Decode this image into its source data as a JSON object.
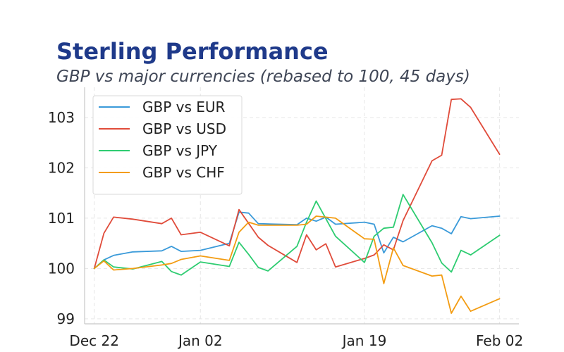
{
  "chart_data": {
    "type": "line",
    "title": "Sterling Performance",
    "subtitle": "GBP vs major currencies (rebased to 100, 45 days)",
    "xlabel": "",
    "ylabel": "",
    "x_ticks": [
      {
        "label": "Dec 22",
        "value": "2023-12-22"
      },
      {
        "label": "Jan 02",
        "value": "2024-01-02"
      },
      {
        "label": "Jan 19",
        "value": "2024-01-19"
      },
      {
        "label": "Feb 02",
        "value": "2024-02-02"
      }
    ],
    "y_ticks": [
      99,
      100,
      101,
      102,
      103
    ],
    "xlim": [
      "2023-12-21",
      "2024-02-04"
    ],
    "ylim": [
      98.9,
      103.6
    ],
    "grid": true,
    "legend_position": "top-left",
    "series": [
      {
        "name": "GBP vs EUR",
        "color": "#3a9ad9",
        "points": [
          [
            "2023-12-22",
            100.0
          ],
          [
            "2023-12-23",
            100.17
          ],
          [
            "2023-12-24",
            100.26
          ],
          [
            "2023-12-26",
            100.33
          ],
          [
            "2023-12-29",
            100.35
          ],
          [
            "2023-12-30",
            100.44
          ],
          [
            "2023-12-31",
            100.34
          ],
          [
            "2024-01-02",
            100.36
          ],
          [
            "2024-01-05",
            100.5
          ],
          [
            "2024-01-06",
            101.12
          ],
          [
            "2024-01-07",
            101.1
          ],
          [
            "2024-01-08",
            100.89
          ],
          [
            "2024-01-12",
            100.87
          ],
          [
            "2024-01-13",
            101.0
          ],
          [
            "2024-01-14",
            100.94
          ],
          [
            "2024-01-15",
            101.02
          ],
          [
            "2024-01-16",
            100.88
          ],
          [
            "2024-01-19",
            100.92
          ],
          [
            "2024-01-20",
            100.88
          ],
          [
            "2024-01-21",
            100.31
          ],
          [
            "2024-01-22",
            100.62
          ],
          [
            "2024-01-23",
            100.53
          ],
          [
            "2024-01-26",
            100.85
          ],
          [
            "2024-01-27",
            100.8
          ],
          [
            "2024-01-28",
            100.69
          ],
          [
            "2024-01-29",
            101.03
          ],
          [
            "2024-01-30",
            100.99
          ],
          [
            "2024-02-02",
            101.04
          ]
        ]
      },
      {
        "name": "GBP vs USD",
        "color": "#e04b3a",
        "points": [
          [
            "2023-12-22",
            100.0
          ],
          [
            "2023-12-23",
            100.7
          ],
          [
            "2023-12-24",
            101.02
          ],
          [
            "2023-12-26",
            100.98
          ],
          [
            "2023-12-29",
            100.89
          ],
          [
            "2023-12-30",
            101.0
          ],
          [
            "2023-12-31",
            100.67
          ],
          [
            "2024-01-02",
            100.72
          ],
          [
            "2024-01-05",
            100.45
          ],
          [
            "2024-01-06",
            101.17
          ],
          [
            "2024-01-08",
            100.62
          ],
          [
            "2024-01-09",
            100.46
          ],
          [
            "2024-01-12",
            100.12
          ],
          [
            "2024-01-13",
            100.67
          ],
          [
            "2024-01-14",
            100.37
          ],
          [
            "2024-01-15",
            100.49
          ],
          [
            "2024-01-16",
            100.03
          ],
          [
            "2024-01-19",
            100.2
          ],
          [
            "2024-01-20",
            100.27
          ],
          [
            "2024-01-21",
            100.47
          ],
          [
            "2024-01-22",
            100.37
          ],
          [
            "2024-01-23",
            100.95
          ],
          [
            "2024-01-26",
            102.14
          ],
          [
            "2024-01-27",
            102.25
          ],
          [
            "2024-01-28",
            103.36
          ],
          [
            "2024-01-29",
            103.37
          ],
          [
            "2024-01-30",
            103.2
          ],
          [
            "2024-02-02",
            102.27
          ]
        ]
      },
      {
        "name": "GBP vs JPY",
        "color": "#2ecc71",
        "points": [
          [
            "2023-12-22",
            100.0
          ],
          [
            "2023-12-23",
            100.17
          ],
          [
            "2023-12-24",
            100.03
          ],
          [
            "2023-12-26",
            99.99
          ],
          [
            "2023-12-29",
            100.14
          ],
          [
            "2023-12-30",
            99.94
          ],
          [
            "2023-12-31",
            99.87
          ],
          [
            "2024-01-02",
            100.13
          ],
          [
            "2024-01-05",
            100.04
          ],
          [
            "2024-01-06",
            100.52
          ],
          [
            "2024-01-07",
            100.28
          ],
          [
            "2024-01-08",
            100.02
          ],
          [
            "2024-01-09",
            99.95
          ],
          [
            "2024-01-12",
            100.44
          ],
          [
            "2024-01-13",
            100.92
          ],
          [
            "2024-01-14",
            101.34
          ],
          [
            "2024-01-16",
            100.64
          ],
          [
            "2024-01-19",
            100.12
          ],
          [
            "2024-01-20",
            100.64
          ],
          [
            "2024-01-21",
            100.8
          ],
          [
            "2024-01-22",
            100.82
          ],
          [
            "2024-01-23",
            101.47
          ],
          [
            "2024-01-26",
            100.51
          ],
          [
            "2024-01-27",
            100.11
          ],
          [
            "2024-01-28",
            99.93
          ],
          [
            "2024-01-29",
            100.36
          ],
          [
            "2024-01-30",
            100.27
          ],
          [
            "2024-02-02",
            100.66
          ]
        ]
      },
      {
        "name": "GBP vs CHF",
        "color": "#f39c12",
        "points": [
          [
            "2023-12-22",
            100.0
          ],
          [
            "2023-12-23",
            100.15
          ],
          [
            "2023-12-24",
            99.97
          ],
          [
            "2023-12-26",
            100.0
          ],
          [
            "2023-12-29",
            100.07
          ],
          [
            "2023-12-30",
            100.1
          ],
          [
            "2023-12-31",
            100.18
          ],
          [
            "2024-01-02",
            100.25
          ],
          [
            "2024-01-05",
            100.16
          ],
          [
            "2024-01-06",
            100.72
          ],
          [
            "2024-01-07",
            100.92
          ],
          [
            "2024-01-08",
            100.86
          ],
          [
            "2024-01-12",
            100.86
          ],
          [
            "2024-01-13",
            100.88
          ],
          [
            "2024-01-14",
            101.04
          ],
          [
            "2024-01-16",
            101.0
          ],
          [
            "2024-01-19",
            100.59
          ],
          [
            "2024-01-20",
            100.58
          ],
          [
            "2024-01-21",
            99.7
          ],
          [
            "2024-01-22",
            100.41
          ],
          [
            "2024-01-23",
            100.06
          ],
          [
            "2024-01-26",
            99.85
          ],
          [
            "2024-01-27",
            99.87
          ],
          [
            "2024-01-28",
            99.11
          ],
          [
            "2024-01-29",
            99.45
          ],
          [
            "2024-01-30",
            99.15
          ],
          [
            "2024-02-02",
            99.4
          ]
        ]
      }
    ]
  }
}
